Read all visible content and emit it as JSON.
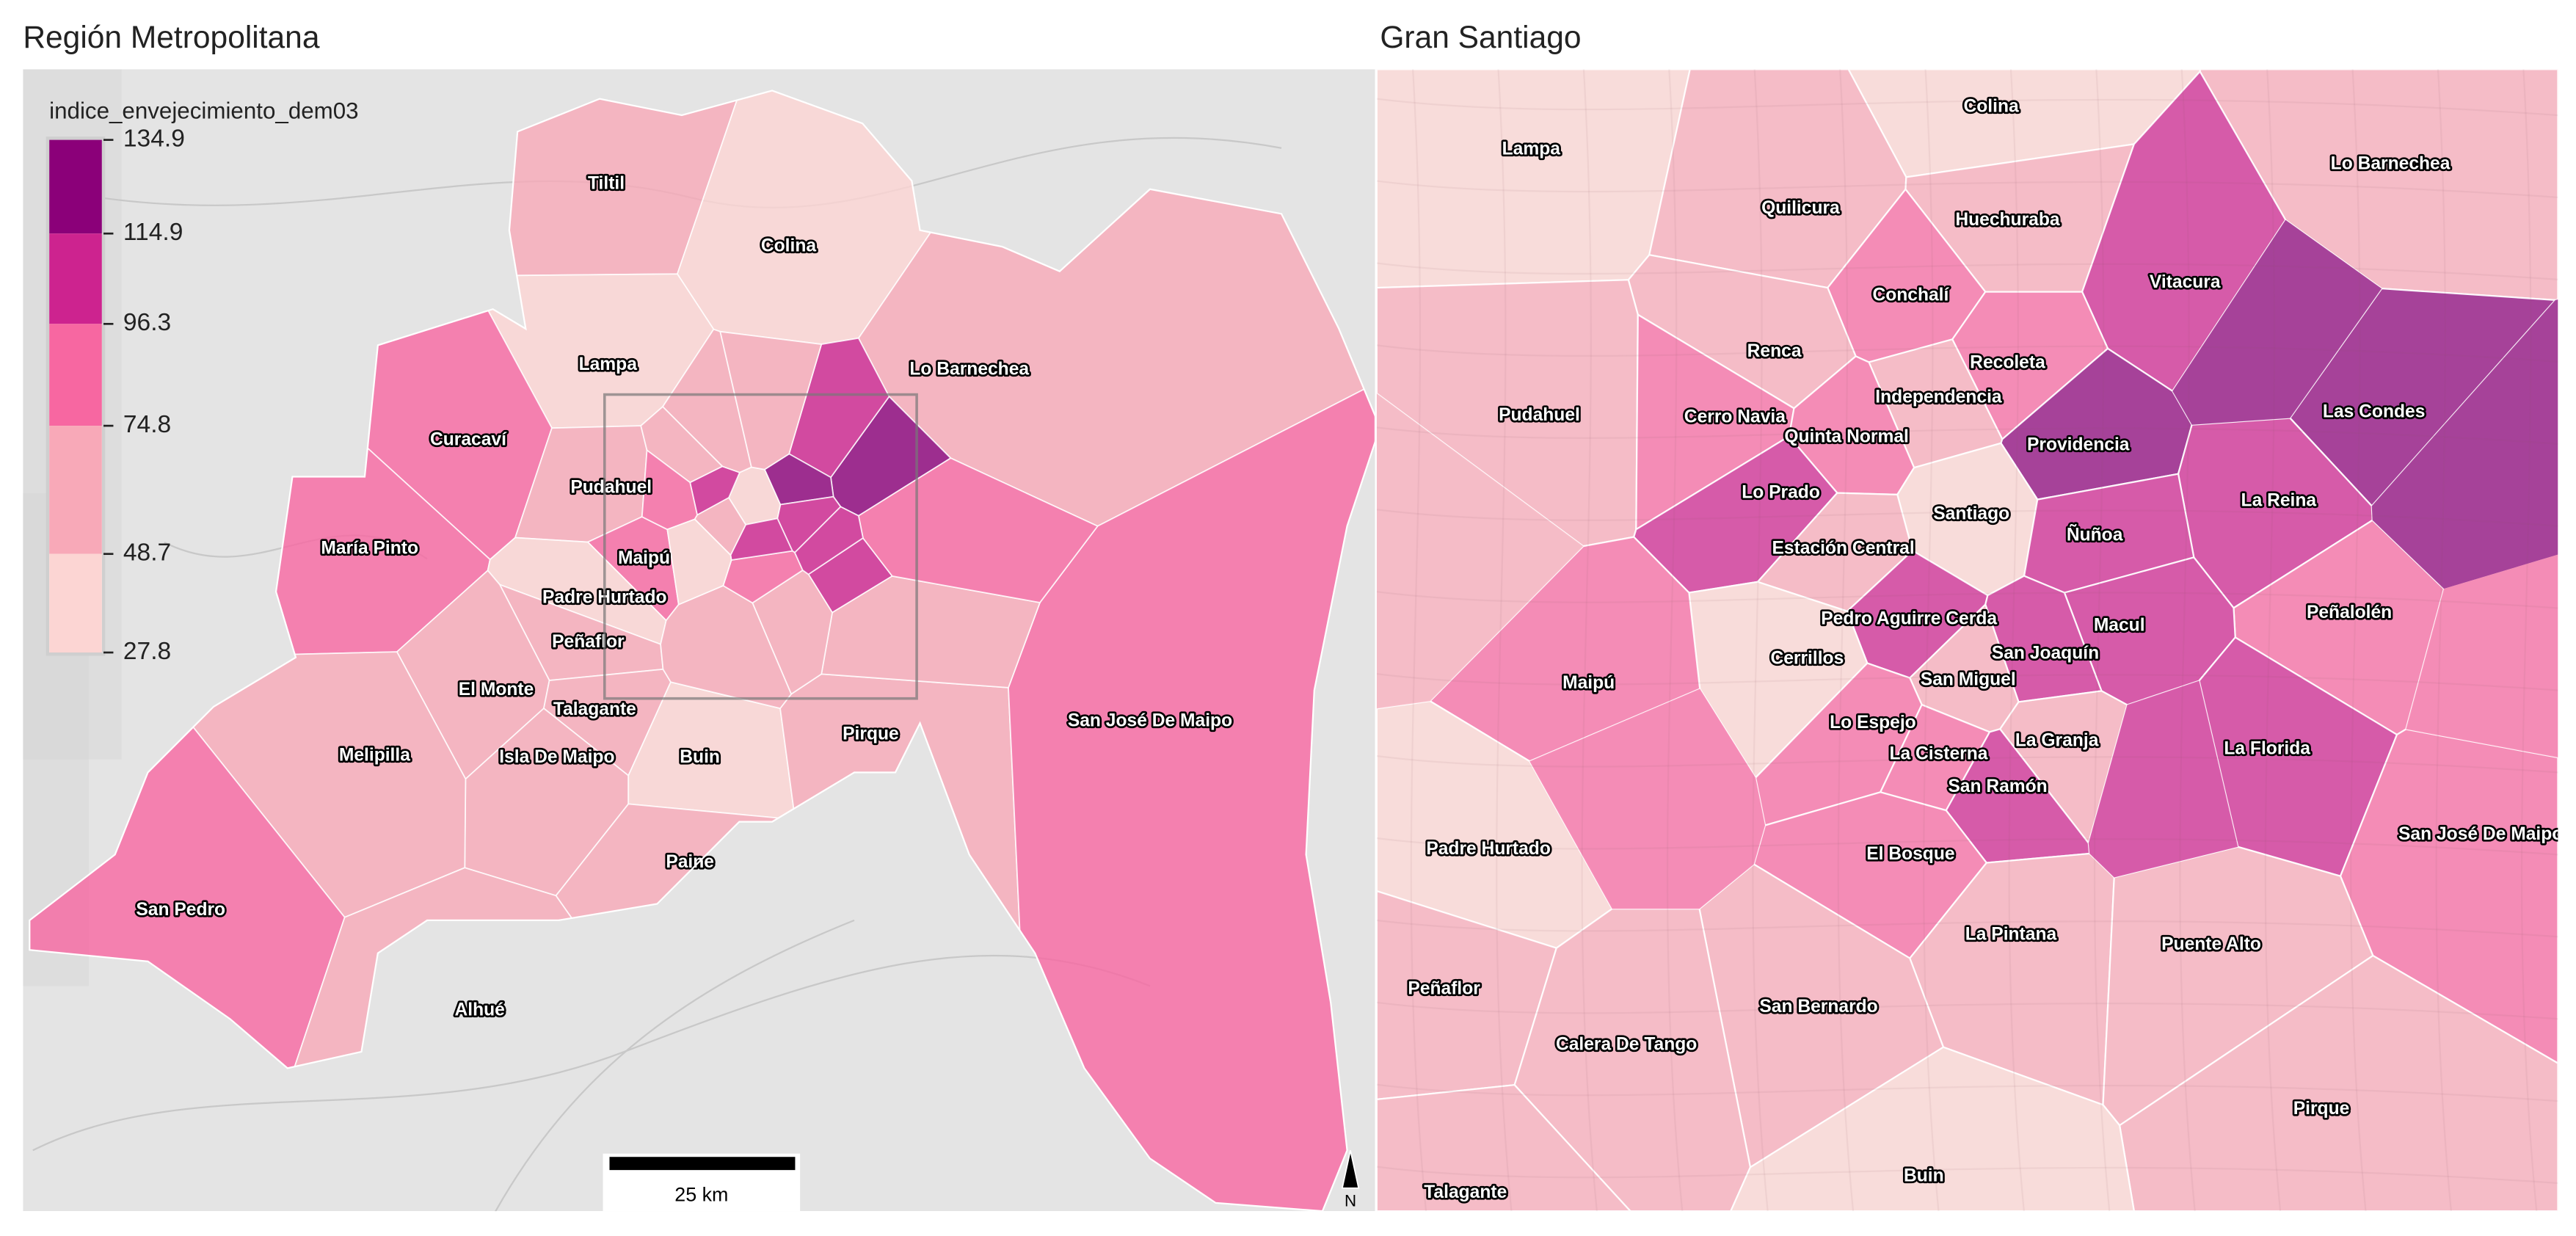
{
  "panels": {
    "left_title": "Región Metropolitana",
    "right_title": "Gran Santiago"
  },
  "legend": {
    "title": "indice_envejecimiento_dem03",
    "breaks": [
      "134.9",
      "114.9",
      "96.3",
      "74.8",
      "48.7",
      "27.8"
    ],
    "colors": [
      "#fcd5d3",
      "#f8a9b8",
      "#f767a1",
      "#cd238f",
      "#8b0079"
    ]
  },
  "scale_bar": {
    "label": "25 km"
  },
  "north_arrow": {
    "label": "N",
    "icon": "north-arrow-icon"
  },
  "left": {
    "communes": [
      {
        "name": "Tiltil",
        "class": 1
      },
      {
        "name": "Colina",
        "class": 0
      },
      {
        "name": "Lampa",
        "class": 0
      },
      {
        "name": "Lo Barnechea",
        "class": 1
      },
      {
        "name": "Curacaví",
        "class": 2
      },
      {
        "name": "María Pinto",
        "class": 2
      },
      {
        "name": "Pudahuel",
        "class": 1
      },
      {
        "name": "Maipú",
        "class": 2
      },
      {
        "name": "Padre Hurtado",
        "class": 0
      },
      {
        "name": "Peñaflor",
        "class": 1
      },
      {
        "name": "El Monte",
        "class": 1
      },
      {
        "name": "Talagante",
        "class": 1
      },
      {
        "name": "Isla De Maipo",
        "class": 1
      },
      {
        "name": "Melipilla",
        "class": 1
      },
      {
        "name": "Buin",
        "class": 0
      },
      {
        "name": "Pirque",
        "class": 1
      },
      {
        "name": "Paine",
        "class": 1
      },
      {
        "name": "San Pedro",
        "class": 2
      },
      {
        "name": "Alhué",
        "class": 1
      },
      {
        "name": "San José De Maipo",
        "class": 2
      }
    ]
  },
  "right": {
    "communes": [
      {
        "name": "Colina",
        "class": 0
      },
      {
        "name": "Lampa",
        "class": 0
      },
      {
        "name": "Lo Barnechea",
        "class": 1
      },
      {
        "name": "Quilicura",
        "class": 1
      },
      {
        "name": "Huechuraba",
        "class": 1
      },
      {
        "name": "Vitacura",
        "class": 3
      },
      {
        "name": "Conchalí",
        "class": 2
      },
      {
        "name": "Renca",
        "class": 1
      },
      {
        "name": "Recoleta",
        "class": 2
      },
      {
        "name": "Independencia",
        "class": 1
      },
      {
        "name": "Pudahuel",
        "class": 1
      },
      {
        "name": "Cerro Navia",
        "class": 2
      },
      {
        "name": "Quinta Normal",
        "class": 2
      },
      {
        "name": "Las Condes",
        "class": 4
      },
      {
        "name": "Providencia",
        "class": 4
      },
      {
        "name": "La Reina",
        "class": 3
      },
      {
        "name": "Lo Prado",
        "class": 3
      },
      {
        "name": "Santiago",
        "class": 0
      },
      {
        "name": "Ñuñoa",
        "class": 3
      },
      {
        "name": "Estación Central",
        "class": 1
      },
      {
        "name": "Peñalolén",
        "class": 2
      },
      {
        "name": "Pedro Aguirre Cerda",
        "class": 3
      },
      {
        "name": "Macul",
        "class": 3
      },
      {
        "name": "San Joaquín",
        "class": 3
      },
      {
        "name": "Cerrillos",
        "class": 0
      },
      {
        "name": "San Miguel",
        "class": 1
      },
      {
        "name": "Maipú",
        "class": 2
      },
      {
        "name": "Lo Espejo",
        "class": 2
      },
      {
        "name": "La Granja",
        "class": 1
      },
      {
        "name": "La Cisterna",
        "class": 2
      },
      {
        "name": "La Florida",
        "class": 3
      },
      {
        "name": "San Ramón",
        "class": 3
      },
      {
        "name": "Padre Hurtado",
        "class": 0
      },
      {
        "name": "San José De Maipo",
        "class": 2
      },
      {
        "name": "El Bosque",
        "class": 2
      },
      {
        "name": "La Pintana",
        "class": 1
      },
      {
        "name": "Puente Alto",
        "class": 1
      },
      {
        "name": "Peñaflor",
        "class": 1
      },
      {
        "name": "San Bernardo",
        "class": 1
      },
      {
        "name": "Calera De Tango",
        "class": 1
      },
      {
        "name": "Pirque",
        "class": 1
      },
      {
        "name": "Buin",
        "class": 0
      },
      {
        "name": "Talagante",
        "class": 1
      }
    ]
  }
}
